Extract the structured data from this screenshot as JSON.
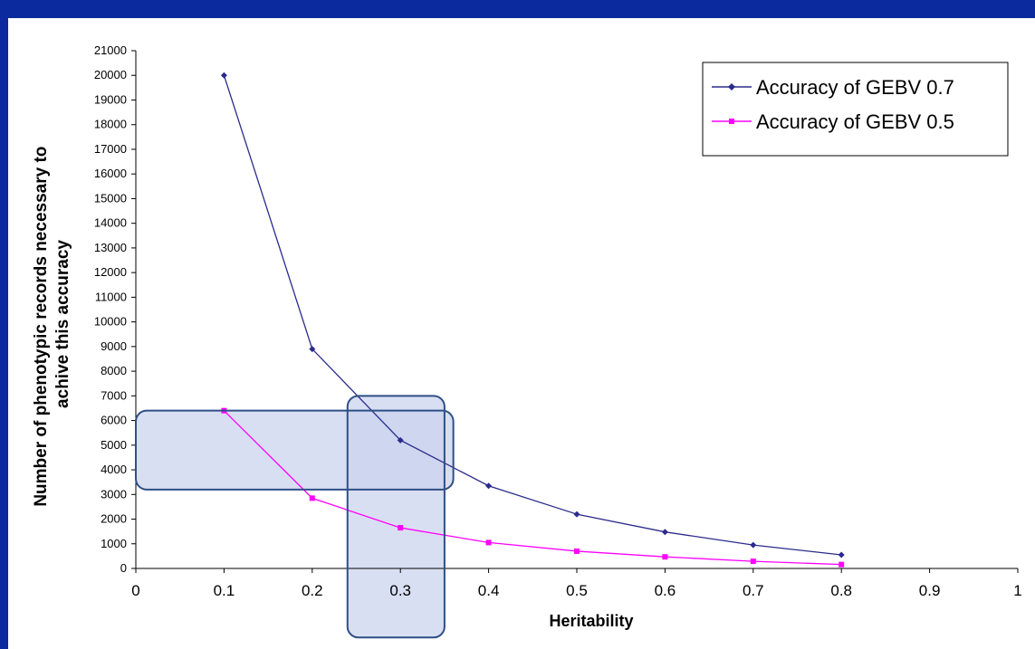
{
  "colors": {
    "background_border": "#0b2a9e",
    "series_07": "#2b2b8c",
    "series_05": "#ff00ff",
    "highlight_fill": "#c9d2ee",
    "highlight_stroke": "#2f4f86"
  },
  "chart_data": {
    "type": "line",
    "xlabel": "Heritability",
    "ylabel": "Number of phenotypic records necessary to achive this accuracy",
    "ylabel_lines": [
      "Number of phenotypic records necessary to",
      "achive this accuracy"
    ],
    "xlim": [
      0,
      1
    ],
    "ylim": [
      0,
      21000
    ],
    "x_ticks": [
      "0",
      "0.1",
      "0.2",
      "0.3",
      "0.4",
      "0.5",
      "0.6",
      "0.7",
      "0.8",
      "0.9",
      "1"
    ],
    "y_ticks": [
      "0",
      "1000",
      "2000",
      "3000",
      "4000",
      "5000",
      "6000",
      "7000",
      "8000",
      "9000",
      "10000",
      "11000",
      "12000",
      "13000",
      "14000",
      "15000",
      "16000",
      "17000",
      "18000",
      "19000",
      "20000",
      "21000"
    ],
    "legend_position": "top-right",
    "grid": false,
    "series": [
      {
        "name": "Accuracy of GEBV 0.7",
        "color": "#2b2b8c",
        "marker": "diamond",
        "x": [
          0.1,
          0.2,
          0.3,
          0.4,
          0.5,
          0.6,
          0.7,
          0.8
        ],
        "y": [
          20000,
          8900,
          5200,
          3350,
          2200,
          1480,
          950,
          550
        ]
      },
      {
        "name": "Accuracy of GEBV 0.5",
        "color": "#ff00ff",
        "marker": "square",
        "x": [
          0.1,
          0.2,
          0.3,
          0.4,
          0.5,
          0.6,
          0.7,
          0.8
        ],
        "y": [
          6400,
          2850,
          1650,
          1050,
          700,
          470,
          290,
          160
        ]
      }
    ],
    "highlights": [
      {
        "orientation": "horizontal",
        "x_range": [
          0,
          0.36
        ],
        "y_range": [
          3200,
          6400
        ]
      },
      {
        "orientation": "vertical",
        "x_range": [
          0.24,
          0.35
        ],
        "y_range": [
          -2800,
          7000
        ]
      }
    ]
  }
}
